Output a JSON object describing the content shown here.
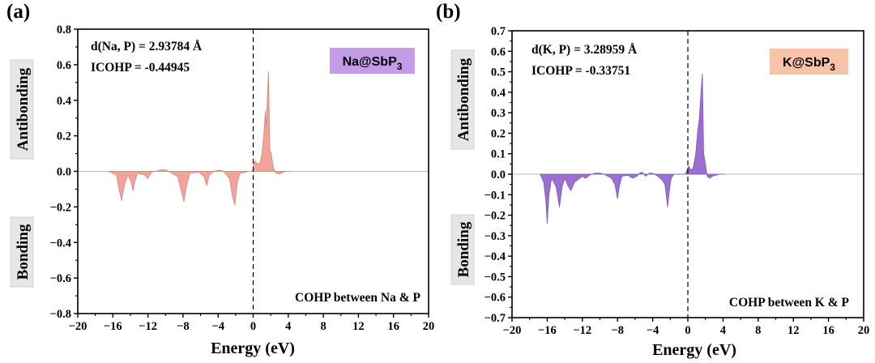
{
  "chart_data": [
    {
      "type": "area",
      "panel_label": "(a)",
      "xlabel": "Energy (eV)",
      "ylabel": "",
      "xlim": [
        -20,
        20
      ],
      "ylim": [
        -0.8,
        0.8
      ],
      "xticks": [
        -20,
        -16,
        -12,
        -8,
        -4,
        0,
        4,
        8,
        12,
        16,
        20
      ],
      "yticks": [
        -0.8,
        -0.6,
        -0.4,
        -0.2,
        0.0,
        0.2,
        0.4,
        0.6,
        0.8
      ],
      "fermi_level_x": 0,
      "side_labels": {
        "top": "Antibonding",
        "bottom": "Bonding"
      },
      "annotations": {
        "bond_length": "d(Na, P) = 2.93784 Å",
        "icohp": "ICOHP = -0.44945",
        "caption": "COHP between Na & P"
      },
      "badge": {
        "main": "Na@SbP",
        "sub": "3",
        "bg": "#c49be8"
      },
      "fill_color": "#f2a39a",
      "stroke_color": "#d9847a",
      "series": [
        {
          "x": [
            -16.5,
            -15.6,
            -15.3,
            -15.0,
            -14.7,
            -14.3,
            -13.9,
            -13.7,
            -13.5,
            -13.2,
            -12.4,
            -12.0,
            -11.6,
            -10.8,
            -10.3,
            -9.8,
            -9.3,
            -8.6,
            -8.2,
            -7.9,
            -7.6,
            -7.2,
            -6.2,
            -5.6,
            -5.3,
            -5.0,
            -4.6,
            -4.2,
            -3.6,
            -3.2,
            -2.7,
            -2.4,
            -2.1,
            -1.8,
            -1.5,
            -0.5,
            -0.05,
            0.0,
            0.2,
            0.5,
            0.8,
            1.0,
            1.2,
            1.4,
            1.5,
            1.6,
            1.75,
            1.9,
            2.05,
            2.3,
            2.6,
            3.0,
            3.4,
            3.8,
            4.3
          ],
          "y": [
            0,
            -0.02,
            -0.1,
            -0.165,
            -0.08,
            -0.02,
            -0.06,
            -0.11,
            -0.06,
            -0.01,
            -0.02,
            -0.04,
            -0.005,
            0.005,
            0.01,
            0.005,
            -0.01,
            -0.03,
            -0.11,
            -0.17,
            -0.08,
            -0.01,
            -0.005,
            -0.03,
            -0.08,
            -0.02,
            -0.005,
            0.005,
            0.005,
            -0.01,
            -0.04,
            -0.13,
            -0.19,
            -0.06,
            -0.01,
            0,
            0,
            0.03,
            0.06,
            0.04,
            0.05,
            0.1,
            0.2,
            0.34,
            0.25,
            0.4,
            0.56,
            0.12,
            0.1,
            0.02,
            -0.01,
            -0.015,
            -0.005,
            0,
            0
          ]
        }
      ]
    },
    {
      "type": "area",
      "panel_label": "(b)",
      "xlabel": "Energy (eV)",
      "ylabel": "",
      "xlim": [
        -20,
        20
      ],
      "ylim": [
        -0.7,
        0.7
      ],
      "xticks": [
        -20,
        -16,
        -12,
        -8,
        -4,
        0,
        4,
        8,
        12,
        16,
        20
      ],
      "yticks": [
        -0.7,
        -0.6,
        -0.5,
        -0.4,
        -0.3,
        -0.2,
        -0.1,
        0.0,
        0.1,
        0.2,
        0.3,
        0.4,
        0.5,
        0.6,
        0.7
      ],
      "fermi_level_x": 0,
      "side_labels": {
        "top": "Antibonding",
        "bottom": "Bonding"
      },
      "annotations": {
        "bond_length": "d(K, P) = 3.28959 Å",
        "icohp": "ICOHP = -0.33751",
        "caption": "COHP between K & P"
      },
      "badge": {
        "main": "K@SbP",
        "sub": "3",
        "bg": "#f8c3a8"
      },
      "fill_color": "#9a6fd0",
      "stroke_color": "#7f55bb",
      "series": [
        {
          "x": [
            -16.8,
            -16.4,
            -16.15,
            -16.0,
            -15.8,
            -15.5,
            -15.0,
            -14.6,
            -14.3,
            -14.0,
            -13.6,
            -13.3,
            -12.9,
            -12.0,
            -11.6,
            -11.2,
            -10.6,
            -9.9,
            -9.3,
            -8.7,
            -8.3,
            -8.0,
            -7.8,
            -7.5,
            -6.8,
            -6.3,
            -5.8,
            -5.5,
            -5.2,
            -4.8,
            -4.4,
            -4.0,
            -3.4,
            -2.9,
            -2.6,
            -2.3,
            -2.1,
            -1.9,
            -1.6,
            -1.0,
            -0.3,
            0.0,
            0.1,
            0.35,
            0.6,
            0.9,
            1.1,
            1.3,
            1.5,
            1.65,
            1.8,
            2.0,
            2.2,
            2.5,
            2.8,
            3.2,
            3.6,
            4.2
          ],
          "y": [
            0,
            -0.04,
            -0.13,
            -0.24,
            -0.1,
            -0.02,
            -0.06,
            -0.16,
            -0.06,
            -0.02,
            -0.06,
            -0.08,
            -0.04,
            -0.01,
            -0.02,
            -0.005,
            0.005,
            0.005,
            -0.005,
            -0.02,
            -0.05,
            -0.12,
            -0.06,
            -0.01,
            -0.005,
            -0.02,
            -0.01,
            0.005,
            0.01,
            -0.01,
            0.005,
            0.005,
            -0.01,
            -0.03,
            -0.05,
            -0.16,
            -0.08,
            -0.02,
            0,
            0,
            0,
            0.03,
            0.04,
            0.02,
            0.03,
            0.1,
            0.2,
            0.27,
            0.4,
            0.49,
            0.1,
            0.05,
            -0.01,
            -0.02,
            -0.01,
            -0.005,
            0,
            0
          ]
        }
      ]
    }
  ]
}
